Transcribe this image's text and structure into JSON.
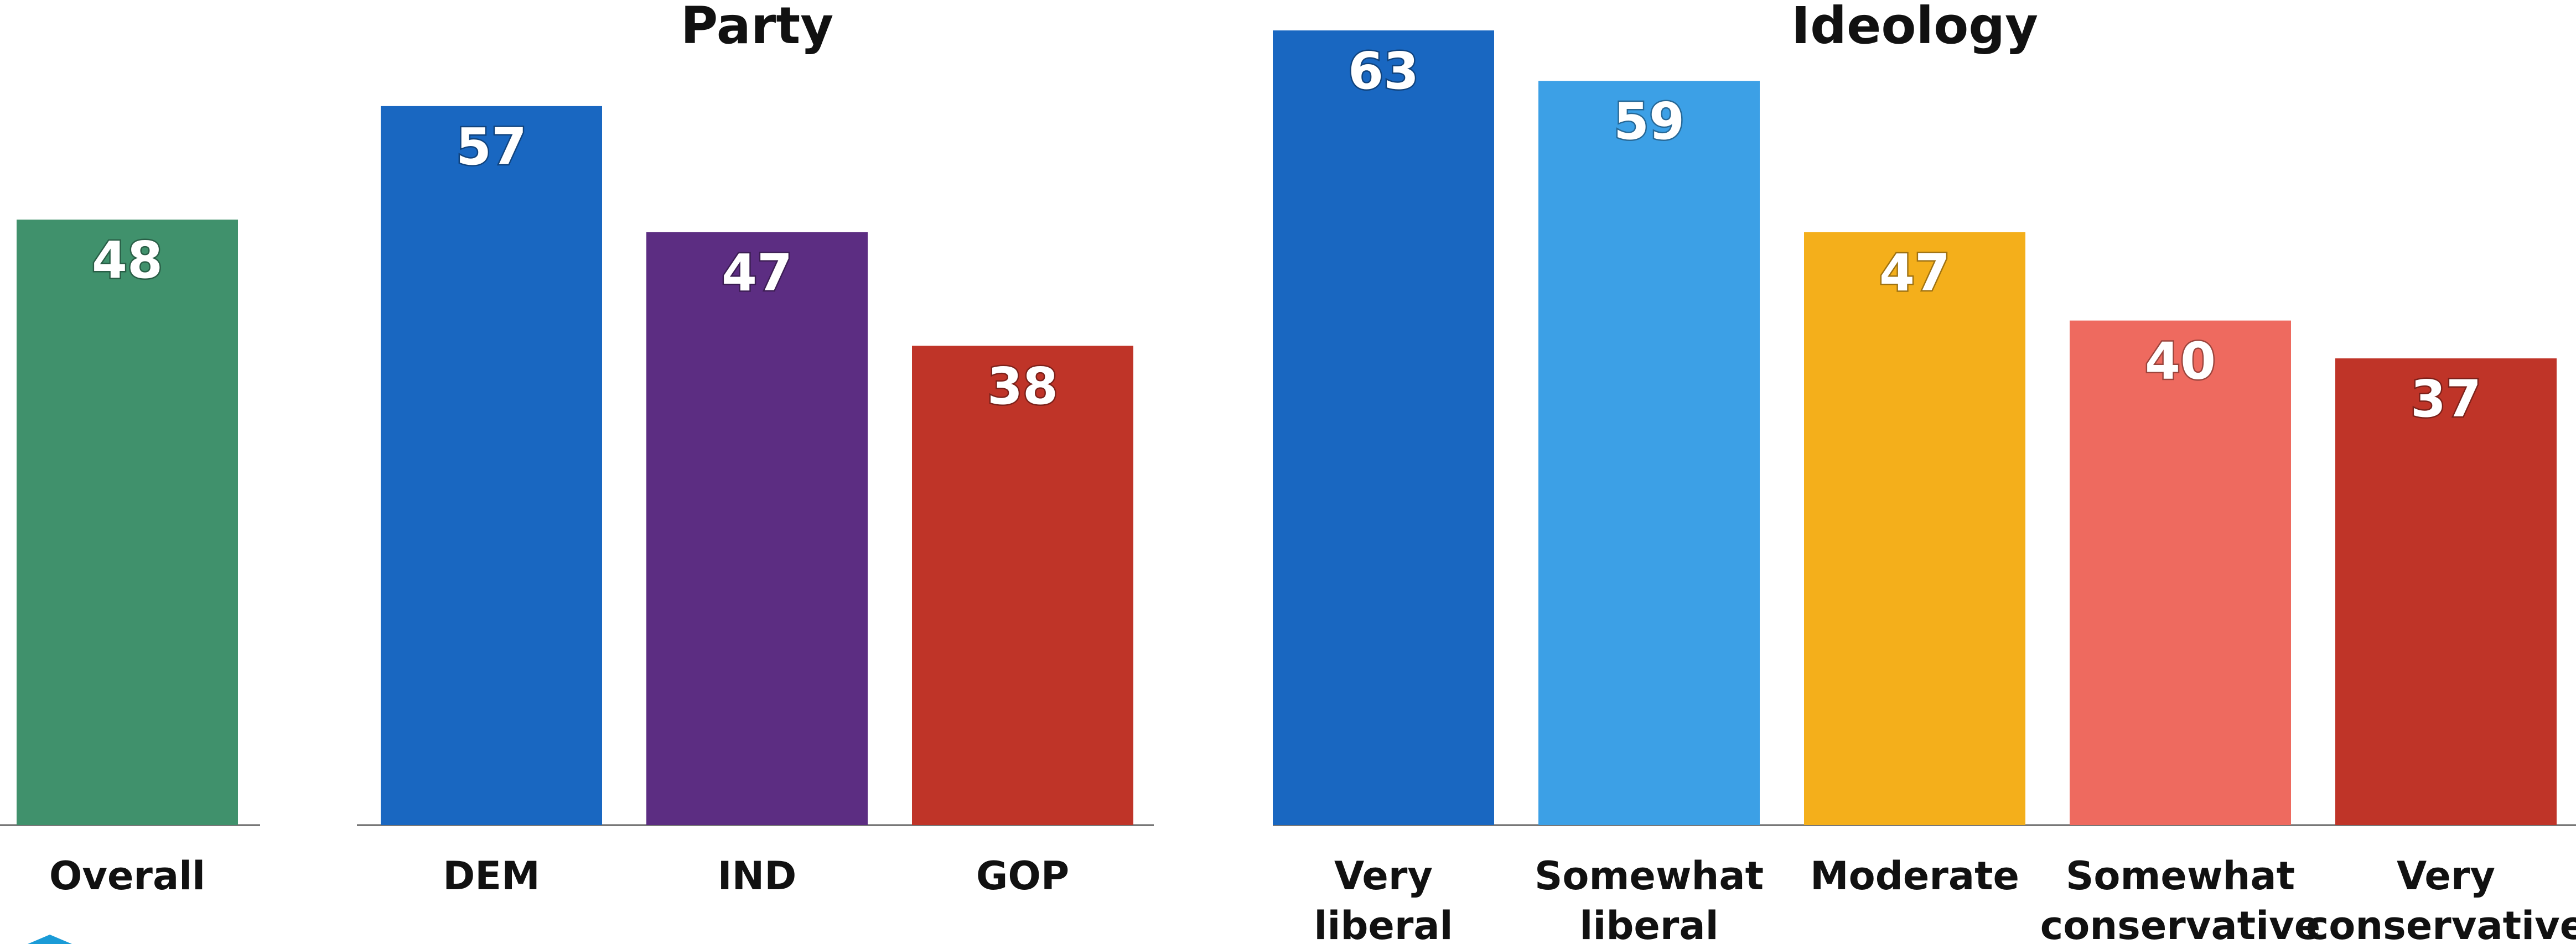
{
  "chart_data": [
    {
      "type": "bar",
      "title": "",
      "categories": [
        "Overall"
      ],
      "values": [
        48
      ],
      "colors": [
        "#40916C"
      ],
      "ylim": [
        0,
        63
      ]
    },
    {
      "type": "bar",
      "title": "Party",
      "categories": [
        "DEM",
        "IND",
        "GOP"
      ],
      "values": [
        57,
        47,
        38
      ],
      "colors": [
        "#1967C1",
        "#5C2D82",
        "#BF3428"
      ],
      "ylim": [
        0,
        63
      ]
    },
    {
      "type": "bar",
      "title": "Ideology",
      "categories": [
        "Very liberal",
        "Somewhat liberal",
        "Moderate",
        "Somewhat conservative",
        "Very conservative"
      ],
      "values": [
        63,
        59,
        47,
        40,
        37
      ],
      "colors": [
        "#1967C1",
        "#3CA0E6",
        "#F4AF1B",
        "#EE6A5F",
        "#BF3428"
      ],
      "ylim": [
        0,
        63
      ]
    }
  ]
}
